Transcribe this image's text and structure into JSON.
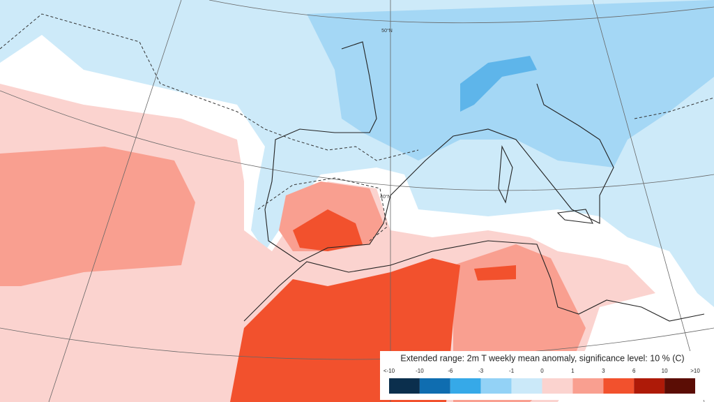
{
  "map": {
    "lat_labels": [
      "50°N",
      "40°N"
    ]
  },
  "legend": {
    "title": "Extended range: 2m T weekly mean anomaly, significance level: 10 % (C)",
    "labels": [
      "<-10",
      "-10",
      "-6",
      "-3",
      "-1",
      "0",
      "1",
      "3",
      "6",
      "10",
      ">10"
    ],
    "colors": [
      "#0b2f4d",
      "#0f6db0",
      "#36a9e8",
      "#93d2f6",
      "#cbe9f9",
      "#fbd3cf",
      "#f99f90",
      "#f2512d",
      "#ae1a08",
      "#5b0d05"
    ]
  }
}
